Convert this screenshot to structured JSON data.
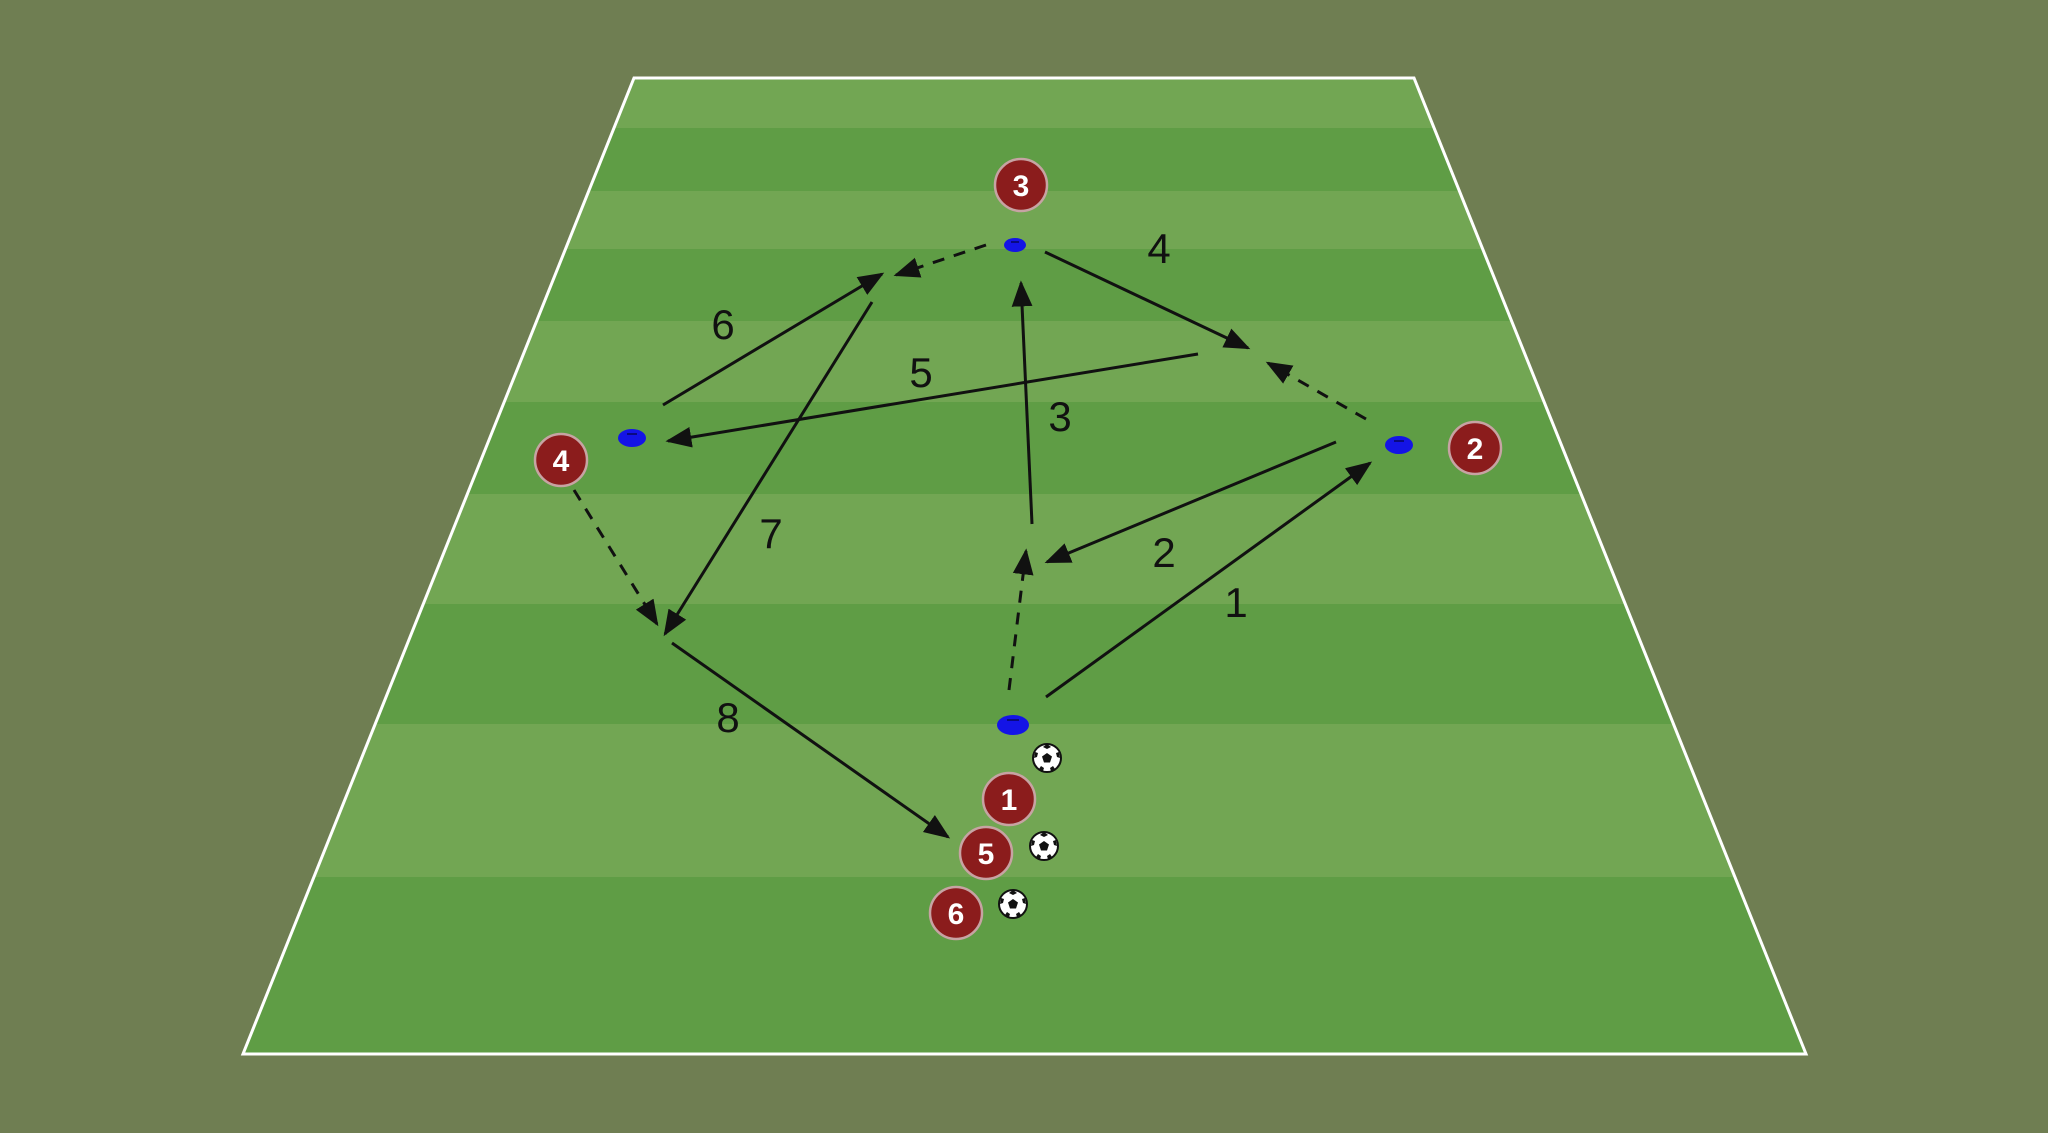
{
  "colors": {
    "background": "#6f7e52",
    "pitch_light": "#72a653",
    "pitch_dark": "#5f9d45",
    "pitch_line": "#ffffff",
    "player_fill": "#8b1c1c",
    "player_stroke": "#c7a3a3",
    "cone": "#1414e6",
    "arrow": "#111111"
  },
  "players": [
    {
      "id": "player-1",
      "label": "1"
    },
    {
      "id": "player-2",
      "label": "2"
    },
    {
      "id": "player-3",
      "label": "3"
    },
    {
      "id": "player-4",
      "label": "4"
    },
    {
      "id": "player-5",
      "label": "5"
    },
    {
      "id": "player-6",
      "label": "6"
    }
  ],
  "sequence_labels": [
    "1",
    "2",
    "3",
    "4",
    "5",
    "6",
    "7",
    "8"
  ],
  "icons": {
    "cone": "cone-marker-icon",
    "ball": "soccer-ball-icon"
  }
}
